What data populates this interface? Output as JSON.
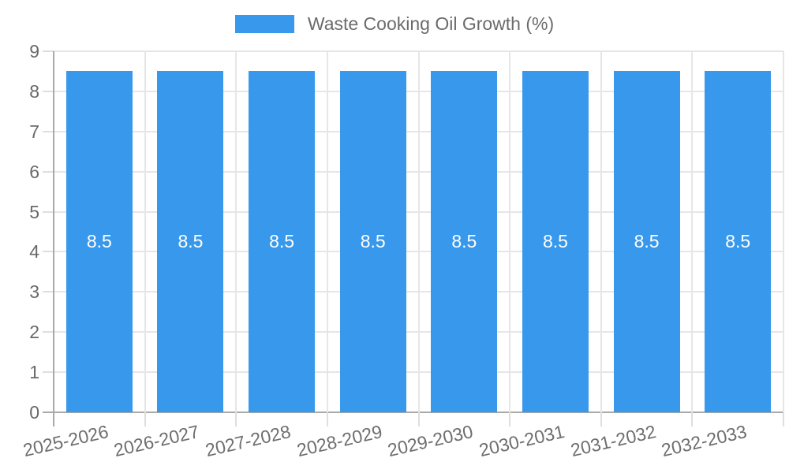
{
  "chart_data": {
    "type": "bar",
    "title": "",
    "xlabel": "",
    "ylabel": "",
    "categories": [
      "2025-2026",
      "2026-2027",
      "2027-2028",
      "2028-2029",
      "2029-2030",
      "2030-2031",
      "2031-2032",
      "2032-2033"
    ],
    "series": [
      {
        "name": "Waste Cooking Oil Growth (%)",
        "color": "#3899EC",
        "values": [
          8.5,
          8.5,
          8.5,
          8.5,
          8.5,
          8.5,
          8.5,
          8.5
        ]
      }
    ],
    "bar_labels": [
      "8.5",
      "8.5",
      "8.5",
      "8.5",
      "8.5",
      "8.5",
      "8.5",
      "8.5"
    ],
    "ylim": [
      0,
      9
    ],
    "yticks": [
      0,
      1,
      2,
      3,
      4,
      5,
      6,
      7,
      8,
      9
    ],
    "grid": true,
    "legend_position": "top",
    "colors": {
      "bar": "#3899EC",
      "grid_line": "#e6e6e6",
      "zero_line": "#a9a9a9",
      "tick_mark": "#dedede",
      "axis_text": "#696969",
      "bar_label": "#ffffff",
      "background": "#ffffff"
    }
  }
}
